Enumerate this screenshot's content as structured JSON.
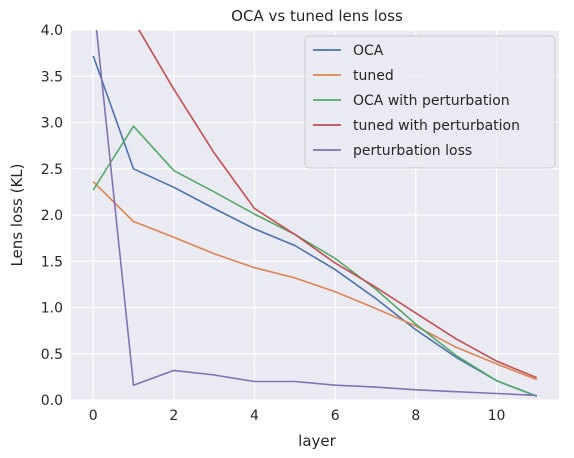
{
  "chart_data": {
    "type": "line",
    "title": "OCA vs tuned lens loss",
    "xlabel": "layer",
    "ylabel": "Lens loss (KL)",
    "xlim": [
      -0.55,
      11.55
    ],
    "ylim": [
      0,
      4.0
    ],
    "xticks": [
      0,
      2,
      4,
      6,
      8,
      10
    ],
    "yticks": [
      0.0,
      0.5,
      1.0,
      1.5,
      2.0,
      2.5,
      3.0,
      3.5,
      4.0
    ],
    "xtick_labels": [
      "0",
      "2",
      "4",
      "6",
      "8",
      "10"
    ],
    "ytick_labels": [
      "0.0",
      "0.5",
      "1.0",
      "1.5",
      "2.0",
      "2.5",
      "3.0",
      "3.5",
      "4.0"
    ],
    "grid": true,
    "legend_position": "top-right",
    "x": [
      0,
      1,
      2,
      3,
      4,
      5,
      6,
      7,
      8,
      9,
      10,
      11
    ],
    "series": [
      {
        "name": "OCA",
        "color": "#4c72b0",
        "values": [
          3.72,
          2.5,
          2.3,
          2.07,
          1.85,
          1.67,
          1.41,
          1.1,
          0.76,
          0.46,
          0.21,
          0.04
        ]
      },
      {
        "name": "tuned",
        "color": "#dd8452",
        "values": [
          2.36,
          1.93,
          1.76,
          1.58,
          1.43,
          1.32,
          1.17,
          0.99,
          0.8,
          0.57,
          0.39,
          0.22
        ]
      },
      {
        "name": "OCA with perturbation",
        "color": "#55a868",
        "values": [
          2.27,
          2.96,
          2.48,
          2.25,
          2.01,
          1.79,
          1.53,
          1.2,
          0.82,
          0.48,
          0.21,
          0.04
        ]
      },
      {
        "name": "tuned with perturbation",
        "color": "#c44e52",
        "values": [
          5.1,
          4.1,
          3.36,
          2.67,
          2.07,
          1.79,
          1.48,
          1.22,
          0.94,
          0.66,
          0.42,
          0.24
        ]
      },
      {
        "name": "perturbation loss",
        "color": "#8172b3",
        "values": [
          4.35,
          0.16,
          0.32,
          0.27,
          0.2,
          0.2,
          0.16,
          0.14,
          0.11,
          0.09,
          0.07,
          0.05
        ]
      }
    ]
  }
}
